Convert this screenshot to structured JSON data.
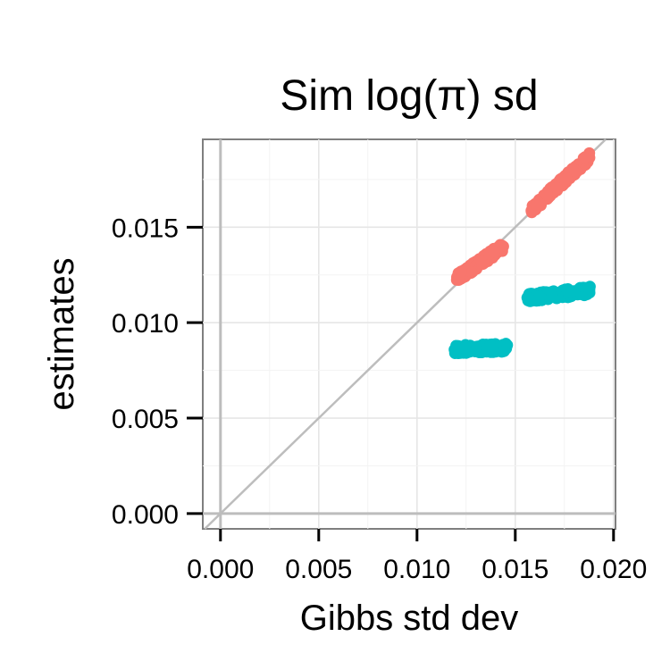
{
  "chart_data": {
    "type": "scatter",
    "title": "Sim log(π) sd",
    "xlabel": "Gibbs std dev",
    "ylabel": "estimates",
    "xlim": [
      -0.0009,
      0.0201
    ],
    "ylim": [
      -0.0008,
      0.0196
    ],
    "x_ticks": [
      "0.000",
      "0.005",
      "0.010",
      "0.015",
      "0.020"
    ],
    "y_ticks": [
      "0.000",
      "0.005",
      "0.010",
      "0.015"
    ],
    "grid": true,
    "reference_lines": [
      "x = 0",
      "y = 0",
      "y = x"
    ],
    "series": [
      {
        "color": "#F8766D",
        "clusters": [
          {
            "x_range": [
              0.012,
              0.0144
            ],
            "y_at_start": 0.0123,
            "y_at_end": 0.014
          },
          {
            "x_range": [
              0.0158,
              0.0188
            ],
            "y_at_start": 0.0159,
            "y_at_end": 0.0187
          }
        ]
      },
      {
        "color": "#00BFC4",
        "clusters": [
          {
            "x_range": [
              0.0119,
              0.0146
            ],
            "y_at_start": 0.0086,
            "y_at_end": 0.0087
          },
          {
            "x_range": [
              0.0156,
              0.0189
            ],
            "y_at_start": 0.0113,
            "y_at_end": 0.0117
          }
        ]
      }
    ]
  }
}
